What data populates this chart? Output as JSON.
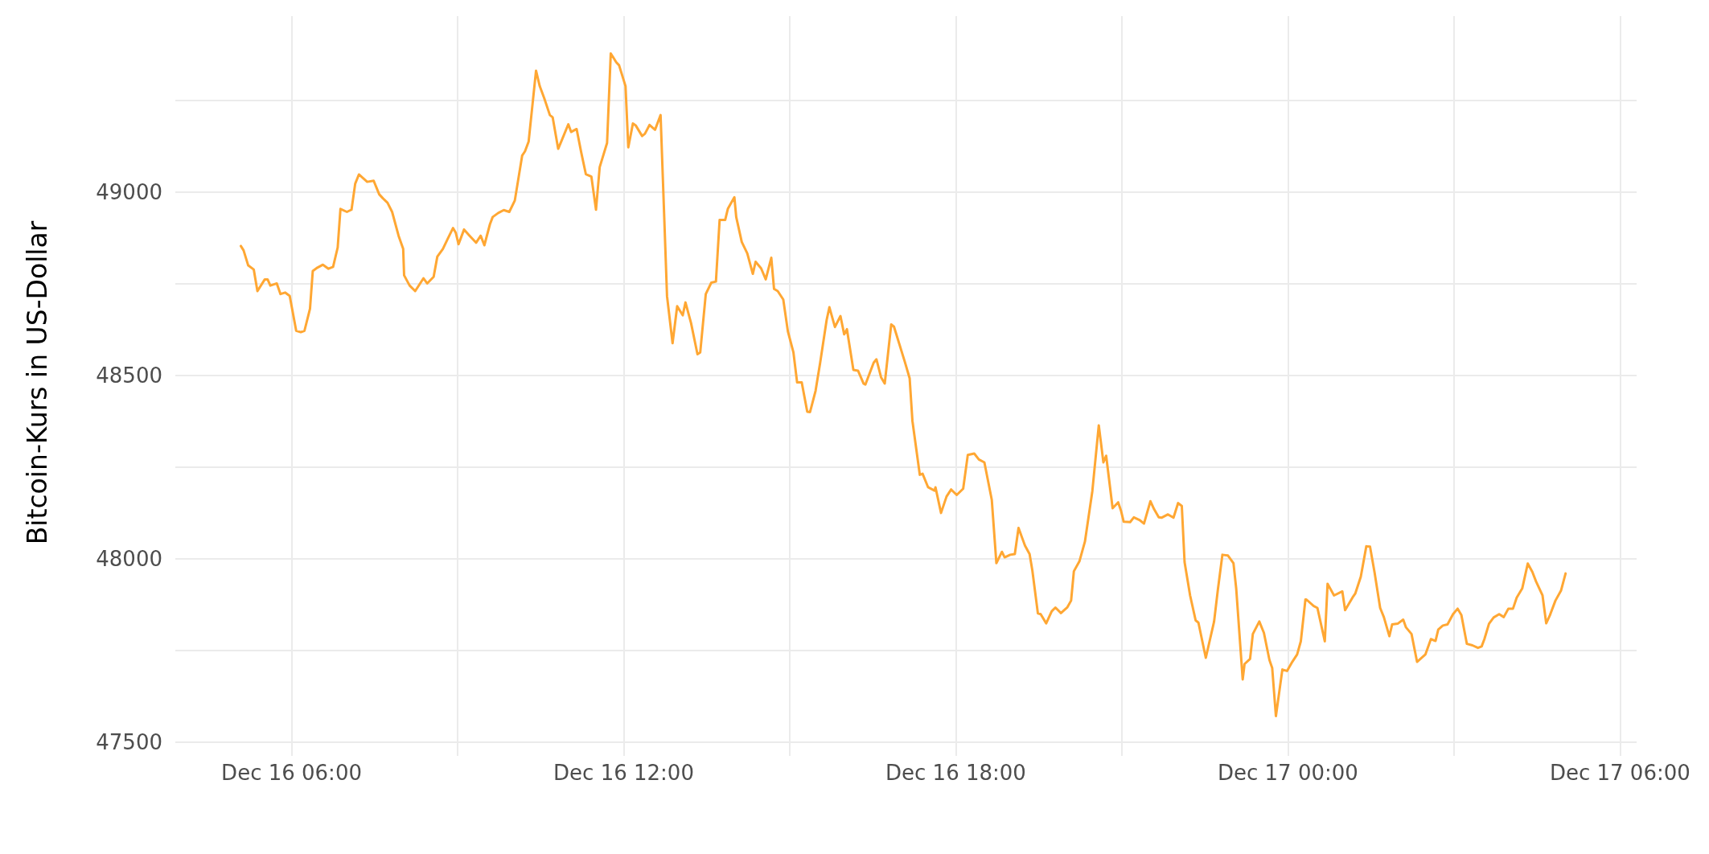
{
  "chart_data": {
    "type": "line",
    "ylabel": "Bitcoin-Kurs in US-Dollar",
    "grid": true,
    "line_style": "solid",
    "xlim": [
      "--12-16T03:54",
      "--12-17T06:18"
    ],
    "xticks": [
      {
        "value": "--12-16T06:00",
        "label": "Dec 16 06:00"
      },
      {
        "value": "--12-16T09:00",
        "label": null
      },
      {
        "value": "--12-16T12:00",
        "label": "Dec 16 12:00"
      },
      {
        "value": "--12-16T15:00",
        "label": null
      },
      {
        "value": "--12-16T18:00",
        "label": "Dec 16 18:00"
      },
      {
        "value": "--12-16T21:00",
        "label": null
      },
      {
        "value": "--12-17T00:00",
        "label": "Dec 17 00:00"
      },
      {
        "value": "--12-17T03:00",
        "label": null
      },
      {
        "value": "--12-17T06:00",
        "label": "Dec 17 06:00"
      }
    ],
    "ylim": [
      47480,
      49480
    ],
    "yticks": [
      47500,
      {
        "value": 47750,
        "label": null
      },
      48000,
      {
        "value": 48250,
        "label": null
      },
      48500,
      {
        "value": 48750,
        "label": null
      },
      49000,
      {
        "value": 49250,
        "label": null
      }
    ],
    "series": [
      {
        "color": "#ffa733",
        "x": [
          "--12-16T05:05",
          "--12-16T05:08",
          "--12-16T05:13",
          "--12-16T05:19",
          "--12-16T05:23",
          "--12-16T05:31",
          "--12-16T05:34",
          "--12-16T05:37",
          "--12-16T05:44",
          "--12-16T05:48",
          "--12-16T05:53",
          "--12-16T05:58",
          "--12-16T06:05",
          "--12-16T06:10",
          "--12-16T06:14",
          "--12-16T06:20",
          "--12-16T06:23",
          "--12-16T06:28",
          "--12-16T06:34",
          "--12-16T06:40",
          "--12-16T06:45",
          "--12-16T06:50",
          "--12-16T06:53",
          "--12-16T07:00",
          "--12-16T07:05",
          "--12-16T07:09",
          "--12-16T07:13",
          "--12-16T07:22",
          "--12-16T07:29",
          "--12-16T07:35",
          "--12-16T07:39",
          "--12-16T07:44",
          "--12-16T07:49",
          "--12-16T07:56",
          "--12-16T08:01",
          "--12-16T08:02",
          "--12-16T08:08",
          "--12-16T08:14",
          "--12-16T08:23",
          "--12-16T08:27",
          "--12-16T08:34",
          "--12-16T08:38",
          "--12-16T08:44",
          "--12-16T08:49",
          "--12-16T08:55",
          "--12-16T08:58",
          "--12-16T09:01",
          "--12-16T09:07",
          "--12-16T09:13",
          "--12-16T09:20",
          "--12-16T09:25",
          "--12-16T09:29",
          "--12-16T09:35",
          "--12-16T09:38",
          "--12-16T09:44",
          "--12-16T09:50",
          "--12-16T09:56",
          "--12-16T10:02",
          "--12-16T10:10",
          "--12-16T10:13",
          "--12-16T10:17",
          "--12-16T10:25",
          "--12-16T10:29",
          "--12-16T10:34",
          "--12-16T10:40",
          "--12-16T10:43",
          "--12-16T10:49",
          "--12-16T10:53",
          "--12-16T11:00",
          "--12-16T11:03",
          "--12-16T11:09",
          "--12-16T11:14",
          "--12-16T11:19",
          "--12-16T11:25",
          "--12-16T11:30",
          "--12-16T11:34",
          "--12-16T11:42",
          "--12-16T11:46",
          "--12-16T11:52",
          "--12-16T11:55",
          "--12-16T12:02",
          "--12-16T12:05",
          "--12-16T12:10",
          "--12-16T12:13",
          "--12-16T12:20",
          "--12-16T12:23",
          "--12-16T12:28",
          "--12-16T12:34",
          "--12-16T12:40",
          "--12-16T12:43",
          "--12-16T12:47",
          "--12-16T12:53",
          "--12-16T12:58",
          "--12-16T13:04",
          "--12-16T13:07",
          "--12-16T13:13",
          "--12-16T13:20",
          "--12-16T13:23",
          "--12-16T13:29",
          "--12-16T13:35",
          "--12-16T13:40",
          "--12-16T13:44",
          "--12-16T13:50",
          "--12-16T13:53",
          "--12-16T14:00",
          "--12-16T14:02",
          "--12-16T14:08",
          "--12-16T14:14",
          "--12-16T14:20",
          "--12-16T14:23",
          "--12-16T14:29",
          "--12-16T14:34",
          "--12-16T14:40",
          "--12-16T14:43",
          "--12-16T14:47",
          "--12-16T14:53",
          "--12-16T14:58",
          "--12-16T15:04",
          "--12-16T15:08",
          "--12-16T15:13",
          "--12-16T15:19",
          "--12-16T15:22",
          "--12-16T15:28",
          "--12-16T15:33",
          "--12-16T15:40",
          "--12-16T15:43",
          "--12-16T15:49",
          "--12-16T15:55",
          "--12-16T15:59",
          "--12-16T16:02",
          "--12-16T16:09",
          "--12-16T16:14",
          "--12-16T16:20",
          "--12-16T16:22",
          "--12-16T16:31",
          "--12-16T16:34",
          "--12-16T16:39",
          "--12-16T16:43",
          "--12-16T16:50",
          "--12-16T16:53",
          "--12-16T17:05",
          "--12-16T17:10",
          "--12-16T17:13",
          "--12-16T17:21",
          "--12-16T17:24",
          "--12-16T17:30",
          "--12-16T17:37",
          "--12-16T17:38",
          "--12-16T17:44",
          "--12-16T17:50",
          "--12-16T17:55",
          "--12-16T18:01",
          "--12-16T18:08",
          "--12-16T18:13",
          "--12-16T18:20",
          "--12-16T18:25",
          "--12-16T18:31",
          "--12-16T18:39",
          "--12-16T18:44",
          "--12-16T18:50",
          "--12-16T18:53",
          "--12-16T18:59",
          "--12-16T19:04",
          "--12-16T19:08",
          "--12-16T19:15",
          "--12-16T19:20",
          "--12-16T19:23",
          "--12-16T19:29",
          "--12-16T19:32",
          "--12-16T19:38",
          "--12-16T19:44",
          "--12-16T19:48",
          "--12-16T19:54",
          "--12-16T20:01",
          "--12-16T20:05",
          "--12-16T20:08",
          "--12-16T20:14",
          "--12-16T20:20",
          "--12-16T20:28",
          "--12-16T20:35",
          "--12-16T20:40",
          "--12-16T20:43",
          "--12-16T20:50",
          "--12-16T20:56",
          "--12-16T20:59",
          "--12-16T21:02",
          "--12-16T21:09",
          "--12-16T21:13",
          "--12-16T21:19",
          "--12-16T21:24",
          "--12-16T21:31",
          "--12-16T21:35",
          "--12-16T21:40",
          "--12-16T21:43",
          "--12-16T21:50",
          "--12-16T21:56",
          "--12-16T22:01",
          "--12-16T22:05",
          "--12-16T22:08",
          "--12-16T22:14",
          "--12-16T22:20",
          "--12-16T22:23",
          "--12-16T22:31",
          "--12-16T22:40",
          "--12-16T22:44",
          "--12-16T22:49",
          "--12-16T22:55",
          "--12-16T23:01",
          "--12-16T23:04",
          "--12-16T23:11",
          "--12-16T23:13",
          "--12-16T23:19",
          "--12-16T23:22",
          "--12-16T23:29",
          "--12-16T23:34",
          "--12-16T23:40",
          "--12-16T23:43",
          "--12-16T23:47",
          "--12-16T23:54",
          "--12-16T23:59",
          "--12-17T00:04",
          "--12-17T00:10",
          "--12-17T00:14",
          "--12-17T00:19",
          "--12-17T00:20",
          "--12-17T00:28",
          "--12-17T00:32",
          "--12-17T00:40",
          "--12-17T00:43",
          "--12-17T00:50",
          "--12-17T00:59",
          "--12-17T01:02",
          "--12-17T01:10",
          "--12-17T01:13",
          "--12-17T01:19",
          "--12-17T01:25",
          "--12-17T01:29",
          "--12-17T01:34",
          "--12-17T01:40",
          "--12-17T01:44",
          "--12-17T01:50",
          "--12-17T01:53",
          "--12-17T01:59",
          "--12-17T02:05",
          "--12-17T02:08",
          "--12-17T02:14",
          "--12-17T02:20",
          "--12-17T02:29",
          "--12-17T02:35",
          "--12-17T02:40",
          "--12-17T02:43",
          "--12-17T02:48",
          "--12-17T02:53",
          "--12-17T02:59",
          "--12-17T03:04",
          "--12-17T03:08",
          "--12-17T03:14",
          "--12-17T03:20",
          "--12-17T03:26",
          "--12-17T03:30",
          "--12-17T03:33",
          "--12-17T03:38",
          "--12-17T03:43",
          "--12-17T03:49",
          "--12-17T03:54",
          "--12-17T03:59",
          "--12-17T04:04",
          "--12-17T04:08",
          "--12-17T04:14",
          "--12-17T04:20",
          "--12-17T04:25",
          "--12-17T04:29",
          "--12-17T04:36",
          "--12-17T04:40",
          "--12-17T04:44",
          "--12-17T04:50",
          "--12-17T04:56",
          "--12-17T05:01"
        ],
        "values": [
          48853,
          48841,
          48800,
          48789,
          48730,
          48762,
          48762,
          48745,
          48751,
          48722,
          48726,
          48717,
          48622,
          48618,
          48622,
          48682,
          48785,
          48794,
          48802,
          48791,
          48796,
          48849,
          48954,
          48946,
          48952,
          49023,
          49048,
          49028,
          49031,
          48994,
          48983,
          48971,
          48946,
          48881,
          48845,
          48773,
          48745,
          48730,
          48765,
          48751,
          48769,
          48824,
          48845,
          48871,
          48902,
          48889,
          48858,
          48898,
          48881,
          48862,
          48881,
          48855,
          48912,
          48932,
          48943,
          48951,
          48946,
          48977,
          49100,
          49111,
          49138,
          49331,
          49289,
          49255,
          49210,
          49204,
          49118,
          49142,
          49185,
          49164,
          49172,
          49108,
          49049,
          49042,
          48952,
          49068,
          49134,
          49378,
          49354,
          49346,
          49289,
          49122,
          49187,
          49182,
          49153,
          49159,
          49183,
          49170,
          49210,
          49000,
          48716,
          48588,
          48689,
          48664,
          48699,
          48643,
          48558,
          48563,
          48722,
          48753,
          48756,
          48924,
          48924,
          48955,
          48986,
          48932,
          48864,
          48833,
          48777,
          48810,
          48792,
          48762,
          48821,
          48736,
          48730,
          48707,
          48620,
          48563,
          48481,
          48481,
          48401,
          48400,
          48458,
          48535,
          48651,
          48686,
          48632,
          48662,
          48612,
          48626,
          48515,
          48513,
          48478,
          48475,
          48535,
          48544,
          48495,
          48478,
          48639,
          48633,
          48535,
          48492,
          48376,
          48229,
          48232,
          48195,
          48186,
          48195,
          48125,
          48170,
          48189,
          48174,
          48191,
          48283,
          48287,
          48271,
          48263,
          48161,
          47988,
          48019,
          48004,
          48011,
          48013,
          48084,
          48036,
          48013,
          47968,
          47851,
          47849,
          47824,
          47857,
          47867,
          47852,
          47868,
          47886,
          47966,
          47993,
          48047,
          48184,
          48364,
          48263,
          48281,
          48138,
          48154,
          48132,
          48101,
          48100,
          48113,
          48106,
          48096,
          48157,
          48135,
          48113,
          48112,
          48121,
          48112,
          48152,
          48144,
          47991,
          47900,
          47832,
          47826,
          47730,
          47829,
          47914,
          48011,
          48009,
          47988,
          47918,
          47671,
          47713,
          47727,
          47795,
          47829,
          47798,
          47724,
          47702,
          47571,
          47698,
          47694,
          47716,
          47739,
          47775,
          47889,
          47889,
          47871,
          47866,
          47775,
          47932,
          47900,
          47911,
          47860,
          47894,
          47905,
          47951,
          48034,
          48033,
          47962,
          47866,
          47841,
          47789,
          47821,
          47823,
          47834,
          47813,
          47795,
          47719,
          47739,
          47781,
          47776,
          47807,
          47818,
          47821,
          47849,
          47864,
          47847,
          47768,
          47764,
          47757,
          47761,
          47781,
          47823,
          47840,
          47849,
          47841,
          47864,
          47864,
          47894,
          47919,
          47987,
          47964,
          47938,
          47900,
          47824,
          47846,
          47886,
          47913,
          47960
        ]
      }
    ]
  }
}
